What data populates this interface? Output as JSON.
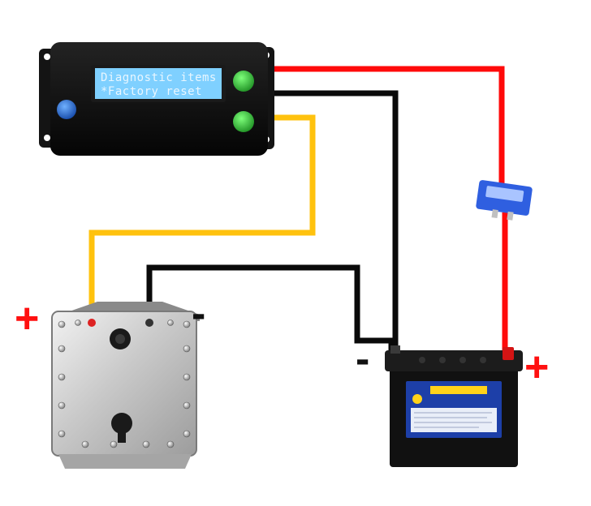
{
  "controller": {
    "display_line_1": "Diagnostic items",
    "display_line_2": "*Factory reset",
    "colors": {
      "body": "#0b0b0b",
      "lcd": "#7fd0ff",
      "button_blue": "#1f6fd6",
      "button_green": "#35b83a"
    }
  },
  "polarity": {
    "cell_positive": "+",
    "cell_negative": "-",
    "battery_negative": "-",
    "battery_positive": "+"
  },
  "wires": {
    "positive_color": "#ff0a0a",
    "negative_color": "#0a0a0a",
    "signal_color": "#ffc20e"
  },
  "fuse": {
    "color": "#2f5fe0"
  },
  "battery": {
    "label_color": "#1d3fa8",
    "label_accent": "#ffd21a"
  }
}
